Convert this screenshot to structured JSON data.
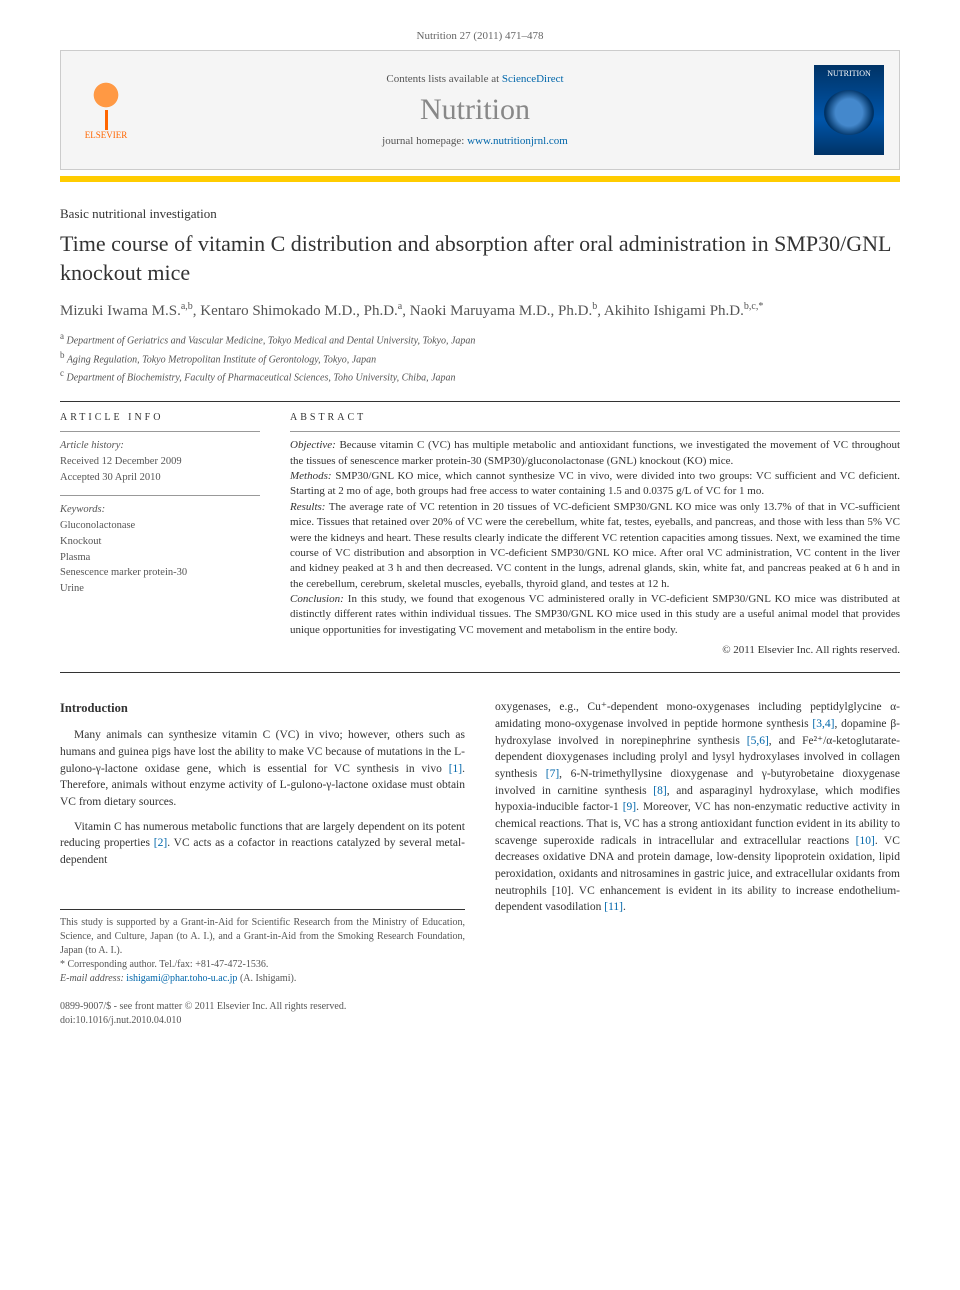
{
  "citation": "Nutrition 27 (2011) 471–478",
  "journal_box": {
    "contents_text": "Contents lists available at ",
    "contents_link": "ScienceDirect",
    "journal_name": "Nutrition",
    "homepage_text": "journal homepage: ",
    "homepage_link": "www.nutritionjrnl.com",
    "publisher": "ELSEVIER",
    "cover_label": "NUTRITION"
  },
  "section_label": "Basic nutritional investigation",
  "title": "Time course of vitamin C distribution and absorption after oral administration in SMP30/GNL knockout mice",
  "authors_html": "Mizuki Iwama M.S.<sup>a,b</sup>, Kentaro Shimokado M.D., Ph.D.<sup>a</sup>, Naoki Maruyama M.D., Ph.D.<sup>b</sup>, Akihito Ishigami Ph.D.<sup>b,c,*</sup>",
  "affiliations": [
    {
      "sup": "a",
      "text": "Department of Geriatrics and Vascular Medicine, Tokyo Medical and Dental University, Tokyo, Japan"
    },
    {
      "sup": "b",
      "text": "Aging Regulation, Tokyo Metropolitan Institute of Gerontology, Tokyo, Japan"
    },
    {
      "sup": "c",
      "text": "Department of Biochemistry, Faculty of Pharmaceutical Sciences, Toho University, Chiba, Japan"
    }
  ],
  "article_info": {
    "heading": "ARTICLE INFO",
    "history_label": "Article history:",
    "received": "Received 12 December 2009",
    "accepted": "Accepted 30 April 2010",
    "keywords_label": "Keywords:",
    "keywords": [
      "Gluconolactonase",
      "Knockout",
      "Plasma",
      "Senescence marker protein-30",
      "Urine"
    ]
  },
  "abstract": {
    "heading": "ABSTRACT",
    "objective_label": "Objective:",
    "objective": "Because vitamin C (VC) has multiple metabolic and antioxidant functions, we investigated the movement of VC throughout the tissues of senescence marker protein-30 (SMP30)/gluconolactonase (GNL) knockout (KO) mice.",
    "methods_label": "Methods:",
    "methods": "SMP30/GNL KO mice, which cannot synthesize VC in vivo, were divided into two groups: VC sufficient and VC deficient. Starting at 2 mo of age, both groups had free access to water containing 1.5 and 0.0375 g/L of VC for 1 mo.",
    "results_label": "Results:",
    "results": "The average rate of VC retention in 20 tissues of VC-deficient SMP30/GNL KO mice was only 13.7% of that in VC-sufficient mice. Tissues that retained over 20% of VC were the cerebellum, white fat, testes, eyeballs, and pancreas, and those with less than 5% VC were the kidneys and heart. These results clearly indicate the different VC retention capacities among tissues. Next, we examined the time course of VC distribution and absorption in VC-deficient SMP30/GNL KO mice. After oral VC administration, VC content in the liver and kidney peaked at 3 h and then decreased. VC content in the lungs, adrenal glands, skin, white fat, and pancreas peaked at 6 h and in the cerebellum, cerebrum, skeletal muscles, eyeballs, thyroid gland, and testes at 12 h.",
    "conclusion_label": "Conclusion:",
    "conclusion": "In this study, we found that exogenous VC administered orally in VC-deficient SMP30/GNL KO mice was distributed at distinctly different rates within individual tissues. The SMP30/GNL KO mice used in this study are a useful animal model that provides unique opportunities for investigating VC movement and metabolism in the entire body.",
    "copyright": "© 2011 Elsevier Inc. All rights reserved."
  },
  "intro": {
    "heading": "Introduction",
    "p1_pre": "Many animals can synthesize vitamin C (VC) in vivo; however, others such as humans and guinea pigs have lost the ability to make VC because of mutations in the L-gulono-γ-lactone oxidase gene, which is essential for VC synthesis in vivo ",
    "p1_ref": "[1]",
    "p1_post": ". Therefore, animals without enzyme activity of L-gulono-γ-lactone oxidase must obtain VC from dietary sources.",
    "p2_pre": "Vitamin C has numerous metabolic functions that are largely dependent on its potent reducing properties ",
    "p2_ref": "[2]",
    "p2_post": ". VC acts as a cofactor in reactions catalyzed by several metal-dependent",
    "col2": "oxygenases, e.g., Cu⁺-dependent mono-oxygenases including peptidylglycine α-amidating mono-oxygenase involved in peptide hormone synthesis [3,4], dopamine β-hydroxylase involved in norepinephrine synthesis [5,6], and Fe²⁺/α-ketoglutarate-dependent dioxygenases including prolyl and lysyl hydroxylases involved in collagen synthesis [7], 6-N-trimethyllysine dioxygenase and γ-butyrobetaine dioxygenase involved in carnitine synthesis [8], and asparaginyl hydroxylase, which modifies hypoxia-inducible factor-1 [9]. Moreover, VC has non-enzymatic reductive activity in chemical reactions. That is, VC has a strong antioxidant function evident in its ability to scavenge superoxide radicals in intracellular and extracellular reactions [10]. VC decreases oxidative DNA and protein damage, low-density lipoprotein oxidation, lipid peroxidation, oxidants and nitrosamines in gastric juice, and extracellular oxidants from neutrophils [10]. VC enhancement is evident in its ability to increase endothelium-dependent vasodilation [11].",
    "col2_refs": [
      "[3,4]",
      "[5,6]",
      "[7]",
      "[8]",
      "[9]",
      "[10]",
      "[10]",
      "[11]"
    ]
  },
  "footnotes": {
    "funding": "This study is supported by a Grant-in-Aid for Scientific Research from the Ministry of Education, Science, and Culture, Japan (to A. I.), and a Grant-in-Aid from the Smoking Research Foundation, Japan (to A. I.).",
    "corr_label": "* Corresponding author. Tel./fax: +81-47-472-1536.",
    "email_label": "E-mail address:",
    "email": "ishigami@phar.toho-u.ac.jp",
    "email_who": "(A. Ishigami)."
  },
  "footer": {
    "issn": "0899-9007/$ - see front matter © 2011 Elsevier Inc. All rights reserved.",
    "doi": "doi:10.1016/j.nut.2010.04.010"
  },
  "colors": {
    "link": "#0066aa",
    "bar": "#ffcc00",
    "text": "#333333",
    "muted": "#555555",
    "elsevier": "#ff6600"
  }
}
